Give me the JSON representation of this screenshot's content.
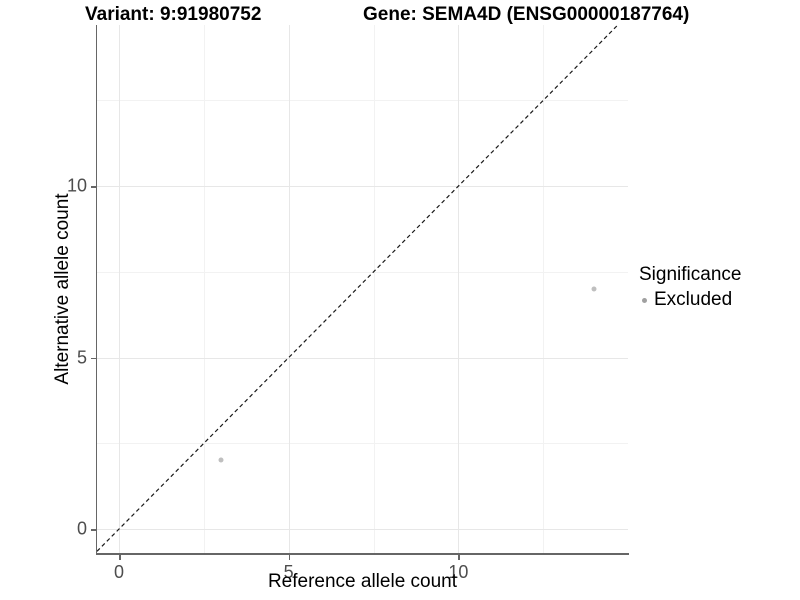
{
  "chart_data": {
    "type": "scatter",
    "title_left": "Variant: 9:91980752",
    "title_right": "Gene: SEMA4D (ENSG00000187764)",
    "xlabel": "Reference allele count",
    "ylabel": "Alternative allele count",
    "xlim": [
      -0.65,
      15.0
    ],
    "ylim": [
      -0.7,
      14.7
    ],
    "x_ticks": [
      0,
      5,
      10
    ],
    "y_ticks": [
      0,
      5,
      10
    ],
    "x_minor_ticks": [
      2.5,
      7.5,
      12.5
    ],
    "y_minor_ticks": [
      2.5,
      7.5,
      12.5
    ],
    "grid": true,
    "legend_position": "right",
    "identity_line": {
      "style": "dashed",
      "slope": 1,
      "intercept": 0,
      "color": "#1a1a1a"
    },
    "series": [
      {
        "name": "Excluded",
        "color": "#bfbfbf",
        "points": [
          {
            "x": 3,
            "y": 2
          },
          {
            "x": 14,
            "y": 7
          }
        ]
      }
    ]
  },
  "legend": {
    "title": "Significance",
    "items": [
      {
        "label": "Excluded",
        "color": "#a0a0a0"
      }
    ]
  },
  "colors": {
    "grid_major": "#e7e7e7",
    "grid_minor": "#f2f2f2",
    "axis_line": "#666666",
    "tick_text": "#4d4d4d"
  }
}
